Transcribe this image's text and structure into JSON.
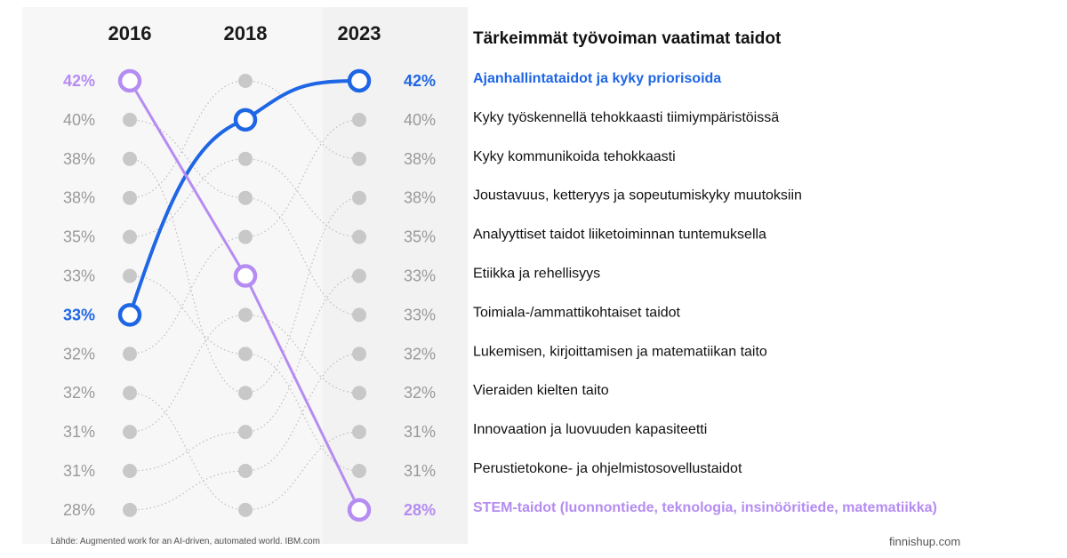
{
  "chart_data": {
    "type": "bump",
    "title": "Tärkeimmät työvoiman vaatimat taidot",
    "years": [
      "2016",
      "2018",
      "2023"
    ],
    "percent_labels_2016": [
      "42%",
      "40%",
      "38%",
      "38%",
      "35%",
      "33%",
      "33%",
      "32%",
      "32%",
      "31%",
      "31%",
      "28%"
    ],
    "percent_labels_2023": [
      "42%",
      "40%",
      "38%",
      "38%",
      "35%",
      "33%",
      "33%",
      "32%",
      "32%",
      "31%",
      "31%",
      "28%"
    ],
    "skills_2023_ranked": [
      "Ajanhallintataidot ja kyky priorisoida",
      "Kyky työskennellä tehokkaasti tiimiympäristöissä",
      "Kyky kommunikoida tehokkaasti",
      "Joustavuus, ketteryys ja sopeutumiskyky muutoksiin",
      "Analyyttiset taidot liiketoiminnan tuntemuksella",
      "Etiikka ja rehellisyys",
      "Toimiala-/ammattikohtaiset taidot",
      "Lukemisen, kirjoittamisen ja matematiikan taito",
      "Vieraiden kielten taito",
      "Innovaation ja luovuuden kapasiteetti",
      "Perustietokone- ja ohjelmistosovellustaidot",
      "STEM-taidot (luonnontiede, teknologia, insinööritiede, matematiikka)"
    ],
    "highlighted_series": [
      {
        "name": "Ajanhallintataidot ja kyky priorisoida",
        "ranks": [
          7,
          2,
          1
        ],
        "values": [
          33,
          40,
          42
        ],
        "color": "#1f66e5"
      },
      {
        "name": "STEM-taidot (luonnontiede, teknologia, insinööritiede, matematiikka)",
        "ranks": [
          1,
          6,
          12
        ],
        "values": [
          42,
          33,
          28
        ],
        "color": "#b58cf2"
      }
    ],
    "background_links": [
      [
        2,
        4
      ],
      [
        3,
        9
      ],
      [
        4,
        1
      ],
      [
        5,
        3
      ],
      [
        6,
        8
      ],
      [
        8,
        5
      ],
      [
        9,
        12
      ],
      [
        10,
        7
      ],
      [
        11,
        10
      ],
      [
        12,
        11
      ],
      [
        1,
        3
      ],
      [
        3,
        5
      ],
      [
        4,
        7
      ],
      [
        5,
        2
      ],
      [
        7,
        9
      ],
      [
        8,
        11
      ],
      [
        9,
        4
      ],
      [
        10,
        6
      ],
      [
        11,
        8
      ],
      [
        12,
        10
      ]
    ],
    "highlight_colors": {
      "blue": "#1f66e5",
      "purple": "#b58cf2",
      "dot": "#c8c8c8",
      "panel_2023": "#f2f2f2"
    }
  },
  "footer": {
    "source": "Lähde: Augmented work for an AI-driven, automated world. IBM.com",
    "brand": "finnishup.com"
  }
}
